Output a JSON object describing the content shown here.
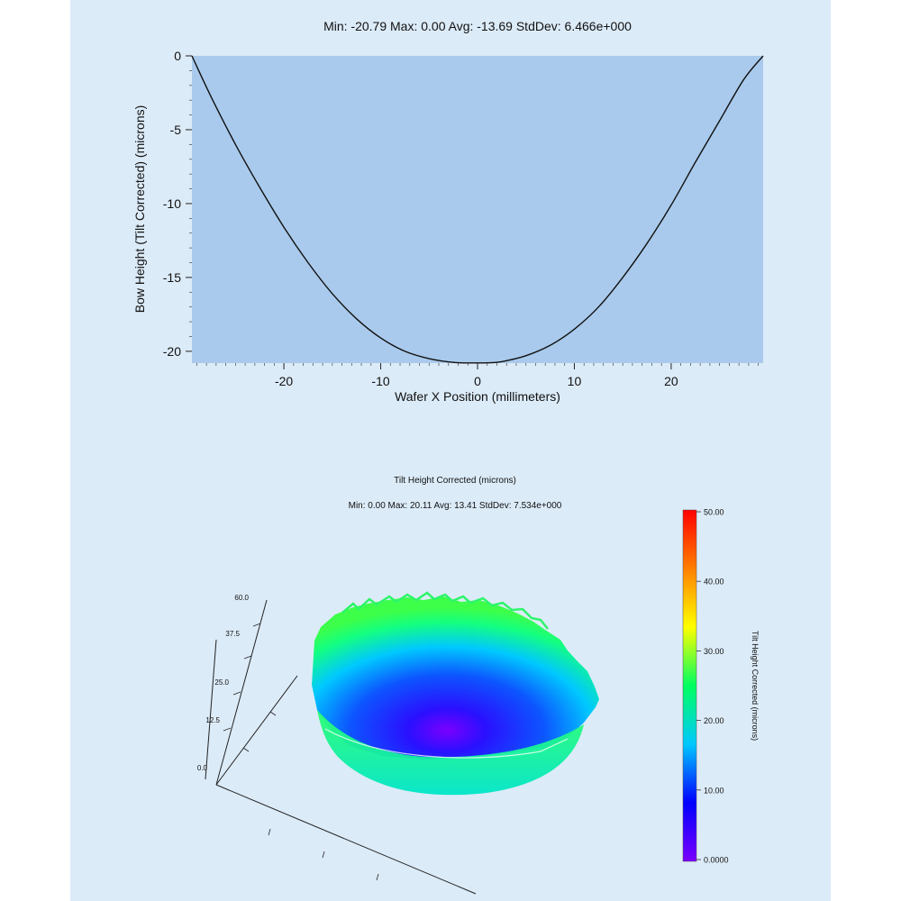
{
  "chart_data": [
    {
      "type": "area",
      "title": "Min: -20.79  Max: 0.00  Avg: -13.69  StdDev: 6.466e+000",
      "xlabel": "Wafer X Position (millimeters)",
      "ylabel": "Bow Height (Tilt Corrected) (microns)",
      "xlim": [
        -29.5,
        29.5
      ],
      "ylim": [
        -20.8,
        0
      ],
      "x_ticks": [
        -20,
        -10,
        0,
        10,
        20
      ],
      "x_tick_labels": [
        "-20",
        "-10",
        "0",
        "10",
        "20"
      ],
      "y_ticks": [
        0,
        -5,
        -10,
        -15,
        -20
      ],
      "y_tick_labels": [
        "0",
        "-5",
        "-10",
        "-15",
        "-20"
      ],
      "x": [
        -29.5,
        -27.5,
        -25,
        -22.5,
        -20,
        -17.5,
        -15,
        -12.5,
        -10,
        -7.5,
        -5,
        -2.5,
        0,
        1,
        2.5,
        5,
        7.5,
        10,
        12.5,
        15,
        17.5,
        20,
        22.5,
        25,
        27.5,
        29.5
      ],
      "values": [
        0,
        -2.8,
        -6.0,
        -8.9,
        -11.6,
        -14.0,
        -16.1,
        -17.8,
        -19.1,
        -20.0,
        -20.5,
        -20.75,
        -20.79,
        -20.78,
        -20.7,
        -20.3,
        -19.6,
        -18.5,
        -17.0,
        -15.0,
        -12.7,
        -10.1,
        -7.2,
        -4.4,
        -1.6,
        0
      ],
      "fill_color": "#a9caec",
      "line_color": "#111111",
      "grid": false
    },
    {
      "type": "surface",
      "title": "Tilt Height Corrected (microns)",
      "subtitle": "Min: 0.00  Max: 20.11  Avg: 13.41  StdDev: 7.534e+000",
      "z_ticks": [
        "60.0",
        "37.5",
        "25.0",
        "12.5",
        "0.0"
      ],
      "colorbar": {
        "label": "Tilt Height Corrected (microns)",
        "min": 0,
        "max": 50,
        "tick_labels": [
          "50.00",
          "40.00",
          "30.00",
          "20.00",
          "10.00",
          "0.0000"
        ],
        "colors": [
          "#7a00ff",
          "#0000ff",
          "#00c8ff",
          "#00ff60",
          "#ffff00",
          "#ff8000",
          "#ff0000"
        ]
      }
    }
  ]
}
